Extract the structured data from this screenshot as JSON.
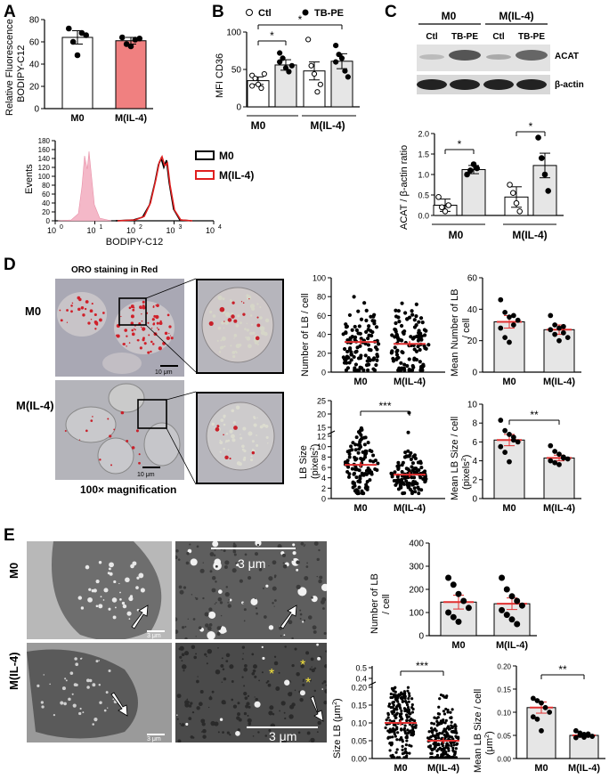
{
  "panels": {
    "A": "A",
    "B": "B",
    "C": "C",
    "D": "D",
    "E": "E"
  },
  "colors": {
    "m0_bar": "#ffffff",
    "m4_bar": "#f08080",
    "gray_bar": "#e6e6e6",
    "mean_line": "#e03030",
    "m4_hist": "#e02020",
    "isotype": "#f4b8c8"
  },
  "panel_a": {
    "ylabel_line1": "Relative Fluorescence",
    "ylabel_line2": "BODIPY-C12",
    "chart_data": {
      "type": "bar",
      "categories": [
        "M0",
        "M(IL-4)"
      ],
      "values": [
        64,
        61
      ],
      "errors": [
        6,
        3
      ],
      "points": [
        [
          72,
          60,
          48,
          68,
          66
        ],
        [
          64,
          58,
          56,
          62,
          63
        ]
      ],
      "ylim": [
        0,
        80
      ],
      "yticks": [
        "0",
        "20",
        "40",
        "60",
        "80"
      ]
    },
    "histogram": {
      "ylabel": "Events",
      "xlabel": "BODIPY-C12",
      "yticks": [
        "0",
        "20",
        "40",
        "60",
        "80",
        "100",
        "120",
        "140",
        "160",
        "180"
      ],
      "xticks": [
        "10",
        "10",
        "10",
        "10",
        "10"
      ],
      "xtick_exps": [
        "0",
        "1",
        "2",
        "3",
        "4"
      ],
      "legend": [
        "M0",
        "M(IL-4)"
      ]
    }
  },
  "panel_b": {
    "legend": [
      "Ctl",
      "TB-PE"
    ],
    "ylabel": "MFI CD36",
    "groups": [
      "M0",
      "M(IL-4)"
    ],
    "chart_data": {
      "type": "bar",
      "categories": [
        "M0 Ctl",
        "M0 TB-PE",
        "M(IL-4) Ctl",
        "M(IL-4) TB-PE"
      ],
      "values": [
        35,
        56,
        48,
        61
      ],
      "errors": [
        5,
        7,
        12,
        10
      ],
      "points": [
        [
          42,
          38,
          30,
          25,
          44,
          28
        ],
        [
          72,
          65,
          52,
          47,
          55,
          60
        ],
        [
          90,
          55,
          44,
          20,
          30
        ],
        [
          82,
          70,
          65,
          48,
          40,
          60
        ]
      ],
      "ylim": [
        0,
        100
      ],
      "yticks": [
        "0",
        "50",
        "100"
      ]
    },
    "sig": [
      "*",
      "*"
    ]
  },
  "panel_c": {
    "groups": [
      "M0",
      "M(IL-4)"
    ],
    "lanes": [
      "Ctl",
      "TB-PE",
      "Ctl",
      "TB-PE"
    ],
    "bands": [
      "ACAT",
      "β-actin"
    ],
    "ylabel": "ACAT / β-actin ratio",
    "chart_data": {
      "type": "bar",
      "categories": [
        "M0 Ctl",
        "M0 TB-PE",
        "M(IL-4) Ctl",
        "M(IL-4) TB-PE"
      ],
      "values": [
        0.25,
        1.12,
        0.45,
        1.22
      ],
      "errors": [
        0.15,
        0.1,
        0.25,
        0.3
      ],
      "points": [
        [
          0.45,
          0.2,
          0.1,
          0.25
        ],
        [
          1.0,
          1.1,
          1.25,
          1.15
        ],
        [
          0.75,
          0.55,
          0.3,
          0.1
        ],
        [
          1.9,
          1.4,
          1.0,
          0.6
        ]
      ],
      "ylim": [
        0,
        2.0
      ],
      "yticks": [
        "0.0",
        "0.5",
        "1.0",
        "1.5",
        "2.0"
      ]
    },
    "sig": [
      "*",
      "*"
    ]
  },
  "panel_d": {
    "title": "ORO staining in Red",
    "rows": [
      "M0",
      "M(IL-4)"
    ],
    "scalebar": "10 μm",
    "magnification": "100× magnification",
    "num_lb": {
      "ylabel": "Number of  LB / cell",
      "yticks": [
        "0",
        "20",
        "40",
        "60",
        "80",
        "100"
      ],
      "categories": [
        "M0",
        "M(IL-4)"
      ],
      "means": [
        32,
        30
      ]
    },
    "mean_num_lb": {
      "ylabel_line1": "Mean Number of  LB",
      "ylabel_line2": "/ cell",
      "yticks": [
        "0",
        "20",
        "40",
        "60"
      ],
      "chart_data": {
        "type": "bar",
        "categories": [
          "M0",
          "M(IL-4)"
        ],
        "values": [
          32,
          27
        ],
        "errors": [
          4,
          3
        ],
        "ylim": [
          0,
          60
        ],
        "points": [
          [
            46,
            38,
            35,
            30,
            33,
            28,
            22,
            19,
            36
          ],
          [
            36,
            30,
            28,
            25,
            22,
            27,
            24,
            20,
            29
          ]
        ]
      }
    },
    "lb_size": {
      "ylabel_line1": "LB Size",
      "ylabel_line2": "(pixels",
      "ylabel_sup": "2",
      "ylabel_end": ")",
      "yticks_low": [
        "0",
        "2",
        "4",
        "6",
        "8",
        "10",
        "12"
      ],
      "yticks_high": [
        "15",
        "20",
        "25"
      ],
      "categories": [
        "M0",
        "M(IL-4)"
      ],
      "means": [
        6.5,
        4.6
      ],
      "sig": "***"
    },
    "mean_lb_size": {
      "ylabel_line1": "Mean LB Size / cell",
      "ylabel_line2": "(pixels",
      "ylabel_sup": "2",
      "ylabel_end": ")",
      "yticks": [
        "0",
        "2",
        "4",
        "6",
        "8",
        "10"
      ],
      "chart_data": {
        "type": "bar",
        "categories": [
          "M0",
          "M(IL-4)"
        ],
        "values": [
          6.2,
          4.3
        ],
        "errors": [
          0.6,
          0.3
        ],
        "ylim": [
          0,
          10
        ],
        "points": [
          [
            8.3,
            7.2,
            6.8,
            6.2,
            6.0,
            5.5,
            4.9,
            3.9,
            6.5
          ],
          [
            5.6,
            5.0,
            4.7,
            4.4,
            4.2,
            4.0,
            3.8,
            3.6,
            4.3
          ]
        ]
      },
      "sig": "**"
    }
  },
  "panel_e": {
    "rows": [
      "M0",
      "M(IL-4)"
    ],
    "scalebar_small": "3 μm",
    "scalebar_large": "3 μm",
    "num_lb": {
      "ylabel_line1": "Number of  LB",
      "ylabel_line2": "/ cell",
      "yticks": [
        "0",
        "100",
        "200",
        "300",
        "400"
      ],
      "chart_data": {
        "type": "bar",
        "categories": [
          "M0",
          "M(IL-4)"
        ],
        "values": [
          145,
          138
        ],
        "errors": [
          30,
          25
        ],
        "ylim": [
          0,
          400
        ],
        "points": [
          [
            250,
            220,
            180,
            150,
            120,
            100,
            80,
            60
          ],
          [
            250,
            200,
            170,
            150,
            130,
            110,
            90,
            70,
            50
          ]
        ]
      }
    },
    "size_lb": {
      "ylabel": "Size LB (μm",
      "ylabel_sup": "2",
      "ylabel_end": ")",
      "yticks_low": [
        "0.00",
        "0.05",
        "0.10",
        "0.15",
        "0.20"
      ],
      "yticks_high": [
        "0.4",
        "0.5"
      ],
      "categories": [
        "M0",
        "M(IL-4)"
      ],
      "means": [
        0.1,
        0.05
      ],
      "sig": "***"
    },
    "mean_lb_size": {
      "ylabel_line1": "Mean LB Size / cell",
      "ylabel_line2": "(μm",
      "ylabel_sup": "2",
      "ylabel_end": ")",
      "yticks": [
        "0.00",
        "0.05",
        "0.10",
        "0.15",
        "0.20"
      ],
      "chart_data": {
        "type": "bar",
        "categories": [
          "M0",
          "M(IL-4)"
        ],
        "values": [
          0.11,
          0.05
        ],
        "errors": [
          0.012,
          0.004
        ],
        "ylim": [
          0,
          0.2
        ],
        "points": [
          [
            0.13,
            0.125,
            0.12,
            0.11,
            0.1,
            0.09,
            0.085,
            0.06
          ],
          [
            0.06,
            0.055,
            0.052,
            0.05,
            0.048,
            0.045,
            0.05,
            0.046,
            0.053
          ]
        ]
      },
      "sig": "**"
    }
  }
}
